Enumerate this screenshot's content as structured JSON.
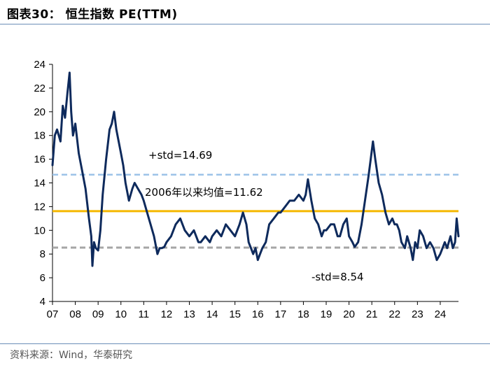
{
  "header": {
    "title": "图表30：  恒生指数 PE(TTM)"
  },
  "footer": {
    "source": "资料来源：Wind，华泰研究"
  },
  "colors": {
    "series": "#0e2a5c",
    "mean": "#f5b800",
    "plus_std": "#9cc3e8",
    "minus_std": "#a6a6a6",
    "rule": "#6b8fb8"
  },
  "chart_data": {
    "type": "line",
    "title": "恒生指数 PE(TTM)",
    "xlabel": "",
    "ylabel": "",
    "ylim": [
      4,
      24
    ],
    "yticks": [
      4,
      6,
      8,
      10,
      12,
      14,
      16,
      18,
      20,
      22,
      24
    ],
    "xlim": [
      2007.0,
      2024.8
    ],
    "xtick_labels": [
      "07",
      "08",
      "09",
      "10",
      "11",
      "12",
      "13",
      "14",
      "15",
      "16",
      "17",
      "18",
      "19",
      "20",
      "21",
      "22",
      "23",
      "24"
    ],
    "reference_lines": [
      {
        "name": "plus_std",
        "label": "+std=14.69",
        "value": 14.69,
        "style": "dashed"
      },
      {
        "name": "mean",
        "label": "2006年以来均值=11.62",
        "value": 11.62,
        "style": "solid"
      },
      {
        "name": "minus_std",
        "label": "-std=8.54",
        "value": 8.54,
        "style": "dashed"
      }
    ],
    "series": [
      {
        "name": "恒生指数 PE(TTM)",
        "x": [
          2007.0,
          2007.1,
          2007.2,
          2007.35,
          2007.45,
          2007.55,
          2007.65,
          2007.75,
          2007.82,
          2007.9,
          2008.0,
          2008.15,
          2008.3,
          2008.45,
          2008.6,
          2008.7,
          2008.75,
          2008.82,
          2008.9,
          2009.0,
          2009.1,
          2009.2,
          2009.35,
          2009.5,
          2009.6,
          2009.7,
          2009.8,
          2009.9,
          2010.0,
          2010.1,
          2010.2,
          2010.35,
          2010.5,
          2010.6,
          2010.75,
          2010.9,
          2011.0,
          2011.15,
          2011.3,
          2011.45,
          2011.6,
          2011.7,
          2011.8,
          2011.9,
          2012.0,
          2012.2,
          2012.4,
          2012.6,
          2012.8,
          2013.0,
          2013.2,
          2013.4,
          2013.5,
          2013.7,
          2013.9,
          2014.0,
          2014.2,
          2014.4,
          2014.6,
          2014.8,
          2015.0,
          2015.2,
          2015.35,
          2015.5,
          2015.6,
          2015.7,
          2015.8,
          2015.9,
          2016.0,
          2016.1,
          2016.2,
          2016.35,
          2016.5,
          2016.7,
          2016.9,
          2017.0,
          2017.2,
          2017.4,
          2017.6,
          2017.8,
          2018.0,
          2018.1,
          2018.2,
          2018.35,
          2018.5,
          2018.65,
          2018.8,
          2018.9,
          2019.0,
          2019.2,
          2019.35,
          2019.5,
          2019.6,
          2019.75,
          2019.9,
          2020.0,
          2020.15,
          2020.25,
          2020.4,
          2020.55,
          2020.7,
          2020.85,
          2020.95,
          2021.05,
          2021.15,
          2021.3,
          2021.45,
          2021.6,
          2021.75,
          2021.9,
          2022.0,
          2022.1,
          2022.2,
          2022.3,
          2022.45,
          2022.55,
          2022.7,
          2022.8,
          2022.9,
          2023.0,
          2023.1,
          2023.25,
          2023.4,
          2023.55,
          2023.7,
          2023.85,
          2024.0,
          2024.1,
          2024.2,
          2024.3,
          2024.45,
          2024.55,
          2024.65,
          2024.72,
          2024.8
        ],
        "values": [
          15.5,
          18.0,
          18.5,
          17.5,
          20.5,
          19.5,
          21.5,
          23.3,
          20.0,
          18.0,
          19.0,
          16.5,
          15.0,
          13.5,
          11.0,
          9.5,
          7.0,
          9.0,
          8.5,
          8.3,
          10.0,
          13.0,
          16.0,
          18.5,
          19.0,
          20.0,
          18.5,
          17.5,
          16.5,
          15.5,
          14.0,
          12.5,
          13.5,
          14.0,
          13.5,
          13.0,
          12.5,
          11.5,
          10.5,
          9.5,
          8.0,
          8.5,
          8.5,
          8.6,
          9.0,
          9.5,
          10.5,
          11.0,
          10.0,
          9.5,
          10.0,
          9.0,
          9.0,
          9.5,
          9.0,
          9.5,
          10.0,
          9.5,
          10.5,
          10.0,
          9.5,
          10.5,
          11.5,
          10.5,
          9.0,
          8.5,
          8.0,
          8.5,
          7.5,
          8.0,
          8.5,
          9.0,
          10.5,
          11.0,
          11.5,
          11.5,
          12.0,
          12.5,
          12.5,
          13.0,
          12.5,
          13.0,
          14.3,
          12.5,
          11.0,
          10.5,
          9.5,
          10.0,
          10.0,
          10.5,
          10.5,
          9.5,
          9.5,
          10.5,
          11.0,
          9.5,
          9.0,
          8.6,
          9.0,
          10.5,
          12.5,
          14.5,
          16.0,
          17.5,
          16.0,
          14.0,
          13.0,
          11.5,
          10.5,
          11.0,
          10.5,
          10.5,
          10.0,
          9.0,
          8.5,
          9.5,
          8.5,
          7.5,
          9.0,
          8.5,
          10.0,
          9.5,
          8.5,
          9.0,
          8.5,
          7.5,
          8.0,
          8.5,
          9.0,
          8.5,
          9.5,
          8.5,
          9.0,
          11.0,
          9.5
        ]
      }
    ]
  }
}
